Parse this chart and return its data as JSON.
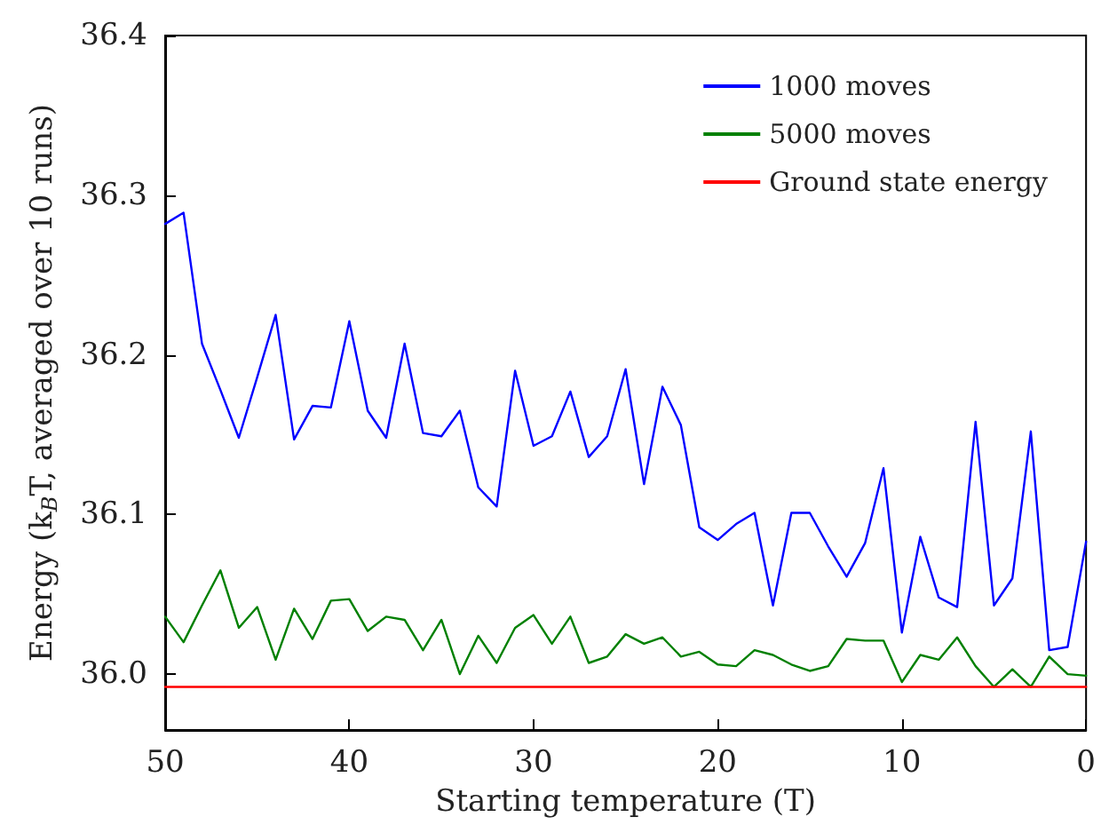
{
  "chart_data": {
    "type": "line",
    "xlabel": "Starting temperature (T)",
    "ylabel": "Energy (k$_{B}$T, averaged over 10 runs)",
    "x": [
      50,
      49,
      48,
      47,
      46,
      45,
      44,
      43,
      42,
      41,
      40,
      39,
      38,
      37,
      36,
      35,
      34,
      33,
      32,
      31,
      30,
      29,
      28,
      27,
      26,
      25,
      24,
      23,
      22,
      21,
      20,
      19,
      18,
      17,
      16,
      15,
      14,
      13,
      12,
      11,
      10,
      9,
      8,
      7,
      6,
      5,
      4,
      3,
      2,
      1,
      0
    ],
    "series": [
      {
        "name": "1000 moves",
        "color": "#0000ff",
        "values": [
          36.282,
          36.289,
          36.207,
          36.178,
          36.148,
          36.186,
          36.225,
          36.147,
          36.168,
          36.167,
          36.221,
          36.165,
          36.148,
          36.207,
          36.151,
          36.149,
          36.165,
          36.117,
          36.105,
          36.19,
          36.143,
          36.149,
          36.177,
          36.136,
          36.149,
          36.191,
          36.119,
          36.18,
          36.156,
          36.092,
          36.084,
          36.094,
          36.101,
          36.043,
          36.101,
          36.101,
          36.08,
          36.061,
          36.082,
          36.129,
          36.026,
          36.086,
          36.048,
          36.042,
          36.158,
          36.043,
          36.06,
          36.152,
          36.015,
          36.017,
          36.083
        ]
      },
      {
        "name": "5000 moves",
        "color": "#008000",
        "values": [
          36.036,
          36.02,
          36.043,
          36.065,
          36.029,
          36.042,
          36.009,
          36.041,
          36.022,
          36.046,
          36.047,
          36.027,
          36.036,
          36.034,
          36.015,
          36.034,
          36.0,
          36.024,
          36.007,
          36.029,
          36.037,
          36.019,
          36.036,
          36.007,
          36.011,
          36.025,
          36.019,
          36.023,
          36.011,
          36.014,
          36.006,
          36.005,
          36.015,
          36.012,
          36.006,
          36.002,
          36.005,
          36.022,
          36.021,
          36.021,
          35.995,
          36.012,
          36.009,
          36.023,
          36.005,
          35.992,
          36.003,
          35.992,
          36.011,
          36.0,
          35.999
        ]
      },
      {
        "name": "Ground state energy",
        "color": "#ff0000",
        "x": [
          50,
          0
        ],
        "values": [
          35.992,
          35.992
        ]
      }
    ],
    "xlim": [
      50,
      0
    ],
    "xticks": [
      50,
      40,
      30,
      20,
      10,
      0
    ],
    "ylim": [
      35.965,
      36.4
    ],
    "yticks": [
      {
        "value": 36.0,
        "label": "36.0"
      },
      {
        "value": 36.1,
        "label": "36.1"
      },
      {
        "value": 36.2,
        "label": "36.2"
      },
      {
        "value": 36.3,
        "label": "36.3"
      },
      {
        "value": 36.4,
        "label": "36.4"
      }
    ],
    "grid": false,
    "legend": "top right",
    "marker": "none",
    "line_style": "solid"
  }
}
